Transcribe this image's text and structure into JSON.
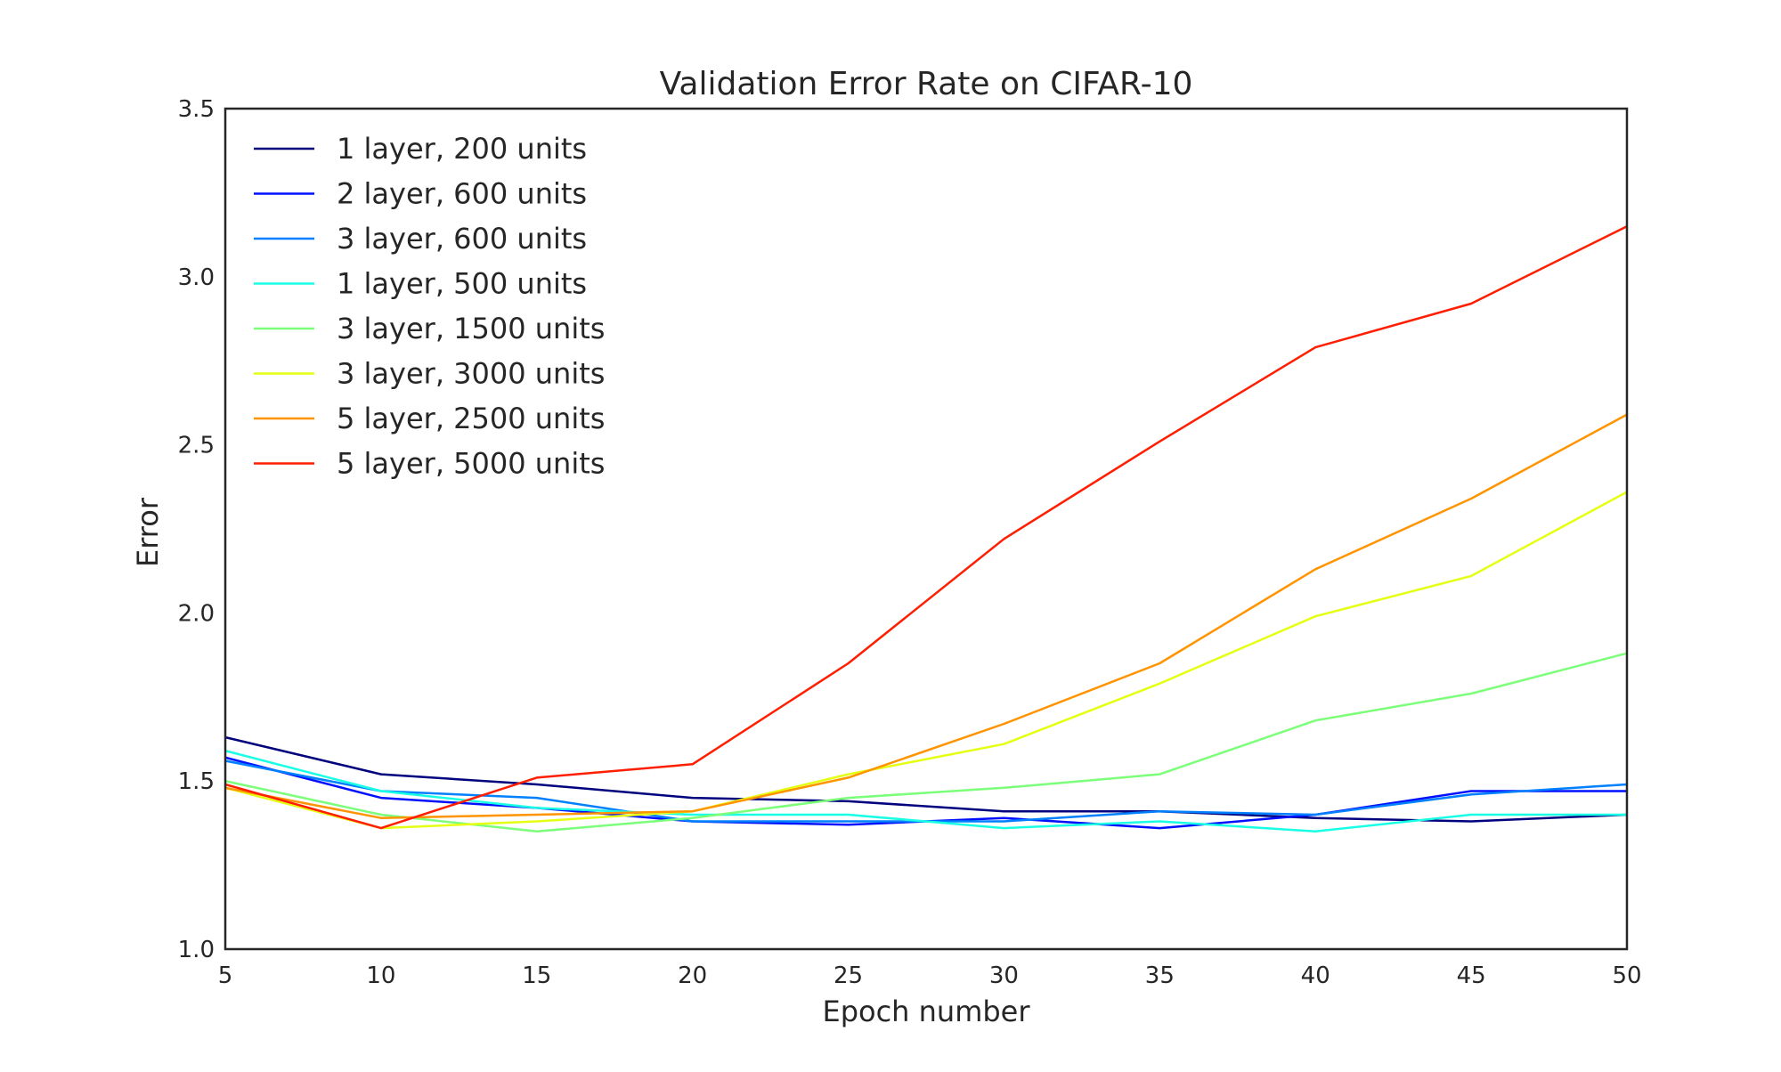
{
  "chart_data": {
    "type": "line",
    "title": "Validation Error Rate on CIFAR-10",
    "xlabel": "Epoch number",
    "ylabel": "Error",
    "xlim": [
      5,
      50
    ],
    "ylim": [
      1.0,
      3.5
    ],
    "xticks": [
      "5",
      "10",
      "15",
      "20",
      "25",
      "30",
      "35",
      "40",
      "45",
      "50"
    ],
    "yticks": [
      "1.0",
      "1.5",
      "2.0",
      "2.5",
      "3.0",
      "3.5"
    ],
    "grid": false,
    "legend_position": "top-left",
    "x": [
      5,
      10,
      15,
      20,
      25,
      30,
      35,
      40,
      45,
      50
    ],
    "series": [
      {
        "name": "1 layer, 200 units",
        "color": "#00007f",
        "values": [
          1.63,
          1.52,
          1.49,
          1.45,
          1.44,
          1.41,
          1.41,
          1.39,
          1.38,
          1.4
        ]
      },
      {
        "name": "2 layer, 600 units",
        "color": "#0010ff",
        "values": [
          1.57,
          1.45,
          1.42,
          1.38,
          1.37,
          1.39,
          1.36,
          1.4,
          1.47,
          1.47
        ]
      },
      {
        "name": "3 layer, 600 units",
        "color": "#0080ff",
        "values": [
          1.56,
          1.47,
          1.45,
          1.38,
          1.38,
          1.38,
          1.41,
          1.4,
          1.46,
          1.49
        ]
      },
      {
        "name": "1 layer, 500 units",
        "color": "#19ffe5",
        "values": [
          1.59,
          1.47,
          1.42,
          1.4,
          1.4,
          1.36,
          1.38,
          1.35,
          1.4,
          1.4
        ]
      },
      {
        "name": "3 layer, 1500 units",
        "color": "#7cff79",
        "values": [
          1.5,
          1.4,
          1.35,
          1.39,
          1.45,
          1.48,
          1.52,
          1.68,
          1.76,
          1.88
        ]
      },
      {
        "name": "3 layer, 3000 units",
        "color": "#e5ff12",
        "values": [
          1.48,
          1.36,
          1.38,
          1.41,
          1.52,
          1.61,
          1.79,
          1.99,
          2.11,
          2.36
        ]
      },
      {
        "name": "5 layer, 2500 units",
        "color": "#ff9400",
        "values": [
          1.48,
          1.39,
          1.4,
          1.41,
          1.51,
          1.67,
          1.85,
          2.13,
          2.34,
          2.59
        ]
      },
      {
        "name": "5 layer, 5000 units",
        "color": "#ff1e00",
        "values": [
          1.49,
          1.36,
          1.51,
          1.55,
          1.85,
          2.22,
          2.51,
          2.79,
          2.92,
          3.15
        ]
      }
    ]
  }
}
